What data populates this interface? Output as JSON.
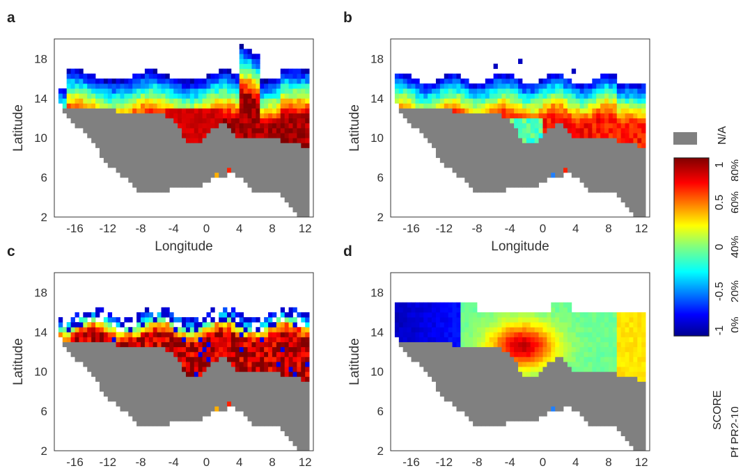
{
  "panels": [
    {
      "letter": "a",
      "xlabel": "Longitude",
      "ylabel": "Latitude",
      "pattern": "a"
    },
    {
      "letter": "b",
      "xlabel": "Longitude",
      "ylabel": "Latitude",
      "pattern": "b"
    },
    {
      "letter": "c",
      "xlabel": "Longitude",
      "ylabel": "Latitude",
      "pattern": "c"
    },
    {
      "letter": "d",
      "xlabel": "Longitude",
      "ylabel": "Latitude",
      "pattern": "d"
    }
  ],
  "axes": {
    "x_ticks": [
      -16,
      -12,
      -8,
      -4,
      0,
      4,
      8,
      12
    ],
    "x_tick_labels": [
      "-16",
      "-12",
      "-8",
      "-4",
      "0",
      "4",
      "8",
      "12"
    ],
    "y_ticks": [
      2,
      6,
      10,
      14,
      18
    ],
    "y_tick_labels": [
      "2",
      "6",
      "10",
      "14",
      "18"
    ],
    "xlim": [
      -18.5,
      13
    ],
    "ylim": [
      2,
      20
    ]
  },
  "legend": {
    "na_label": "N/A",
    "na_color": "#808080",
    "score_ticks": [
      "-1",
      "-0.5",
      "0",
      "0.5",
      "1"
    ],
    "pr_ticks": [
      "0%",
      "20%",
      "40%",
      "60%",
      "80%"
    ],
    "score_title": "SCORE",
    "pr_title": "Pf PR2-10"
  }
}
